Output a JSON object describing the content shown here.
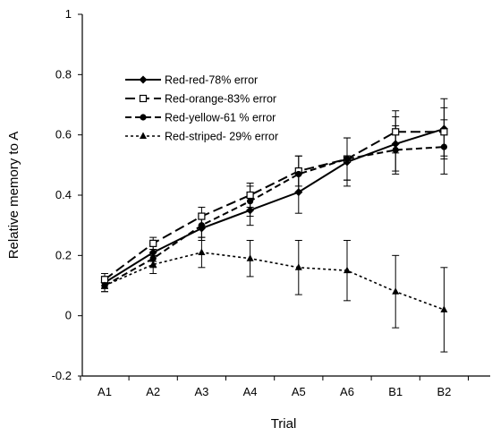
{
  "chart_data": {
    "type": "line",
    "xlabel": "Trial",
    "ylabel": "Relative memory to A",
    "categories": [
      "A1",
      "A2",
      "A3",
      "A4",
      "A5",
      "A6",
      "B1",
      "B2"
    ],
    "ylim": [
      -0.2,
      1
    ],
    "yticks": [
      "1",
      "0.8",
      "0.6",
      "0.4",
      "0.2",
      "0",
      "-0.2"
    ],
    "yticks_values": [
      1,
      0.8,
      0.6,
      0.4,
      0.2,
      0,
      -0.2
    ],
    "grid": false,
    "legend_position": "upper-left",
    "series": [
      {
        "name": "Red-red-78% error",
        "marker": "diamond",
        "line": "solid",
        "values": [
          0.11,
          0.21,
          0.29,
          0.35,
          0.41,
          0.51,
          0.57,
          0.62
        ],
        "error": [
          0.02,
          0.03,
          0.04,
          0.05,
          0.07,
          0.08,
          0.09,
          0.1
        ]
      },
      {
        "name": "Red-orange-83% error",
        "marker": "open-square",
        "line": "long-dash",
        "values": [
          0.12,
          0.24,
          0.33,
          0.4,
          0.48,
          0.52,
          0.61,
          0.61
        ],
        "error": [
          0.02,
          0.02,
          0.03,
          0.04,
          0.05,
          0.07,
          0.07,
          0.08
        ]
      },
      {
        "name": "Red-yellow-61 % error",
        "marker": "filled-circle",
        "line": "dash",
        "values": [
          0.1,
          0.19,
          0.3,
          0.38,
          0.47,
          0.52,
          0.55,
          0.56
        ],
        "error": [
          0.02,
          0.03,
          0.04,
          0.05,
          0.06,
          0.07,
          0.08,
          0.09
        ]
      },
      {
        "name": "Red-striped- 29% error",
        "marker": "filled-triangle",
        "line": "dotted",
        "values": [
          0.1,
          0.17,
          0.21,
          0.19,
          0.16,
          0.15,
          0.08,
          0.02
        ],
        "error": [
          0.02,
          0.03,
          0.05,
          0.06,
          0.09,
          0.1,
          0.12,
          0.14
        ]
      }
    ]
  }
}
